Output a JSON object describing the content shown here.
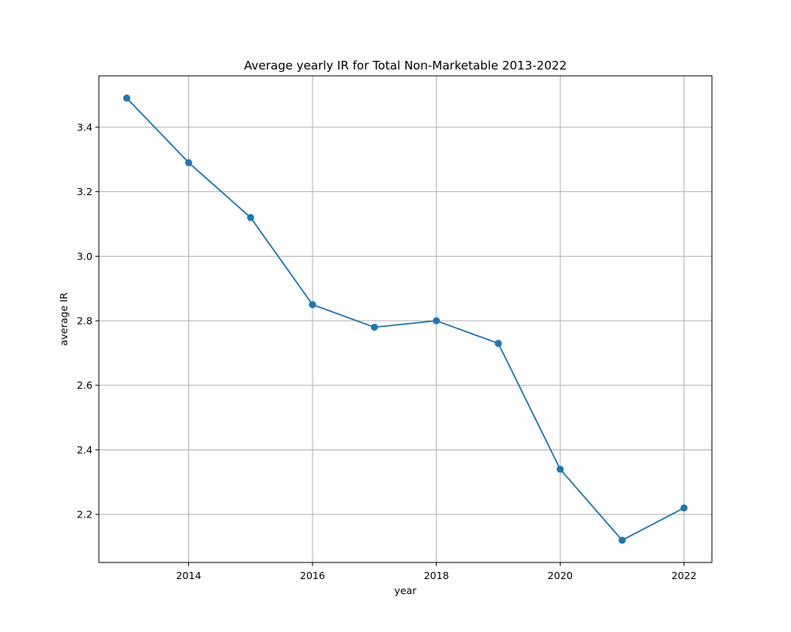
{
  "chart_data": {
    "type": "line",
    "title": "Average yearly IR for Total Non-Marketable 2013-2022",
    "xlabel": "year",
    "ylabel": "average IR",
    "x": [
      2013,
      2014,
      2015,
      2016,
      2017,
      2018,
      2019,
      2020,
      2021,
      2022
    ],
    "series": [
      {
        "name": "Total Non-Marketable",
        "values": [
          3.49,
          3.29,
          3.12,
          2.85,
          2.78,
          2.8,
          2.73,
          2.34,
          2.12,
          2.22
        ],
        "color": "#1f77b4",
        "marker": "circle"
      }
    ],
    "xlim": [
      2012.55,
      2022.45
    ],
    "ylim": [
      2.051,
      3.559
    ],
    "xticks": [
      2014,
      2016,
      2018,
      2020,
      2022
    ],
    "xtick_labels": [
      "2014",
      "2016",
      "2018",
      "2020",
      "2022"
    ],
    "yticks": [
      2.2,
      2.4,
      2.6,
      2.8,
      3.0,
      3.2,
      3.4
    ],
    "ytick_labels": [
      "2.2",
      "2.4",
      "2.6",
      "2.8",
      "3.0",
      "3.2",
      "3.4"
    ],
    "grid": true,
    "legend": "none"
  }
}
